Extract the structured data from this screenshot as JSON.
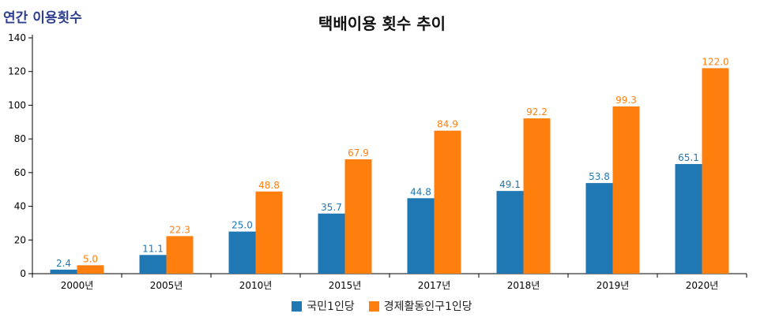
{
  "chart_data": {
    "type": "bar",
    "title": "택배이용 횟수 추이",
    "ylabel": "연간 이용횟수",
    "xlabel": "",
    "categories": [
      "2000년",
      "2005년",
      "2010년",
      "2015년",
      "2017년",
      "2018년",
      "2019년",
      "2020년"
    ],
    "series": [
      {
        "name": "국민1인당",
        "values": [
          2.4,
          11.1,
          25.0,
          35.7,
          44.8,
          49.1,
          53.8,
          65.1
        ],
        "color": "#1f77b4"
      },
      {
        "name": "경제활동인구1인당",
        "values": [
          5.0,
          22.3,
          48.8,
          67.9,
          84.9,
          92.2,
          99.3,
          122.0
        ],
        "color": "#ff7f0e"
      }
    ],
    "ylim": [
      0,
      140
    ],
    "yticks": [
      0,
      20,
      40,
      60,
      80,
      100,
      120,
      140
    ],
    "grid": false,
    "legend_position": "bottom"
  }
}
